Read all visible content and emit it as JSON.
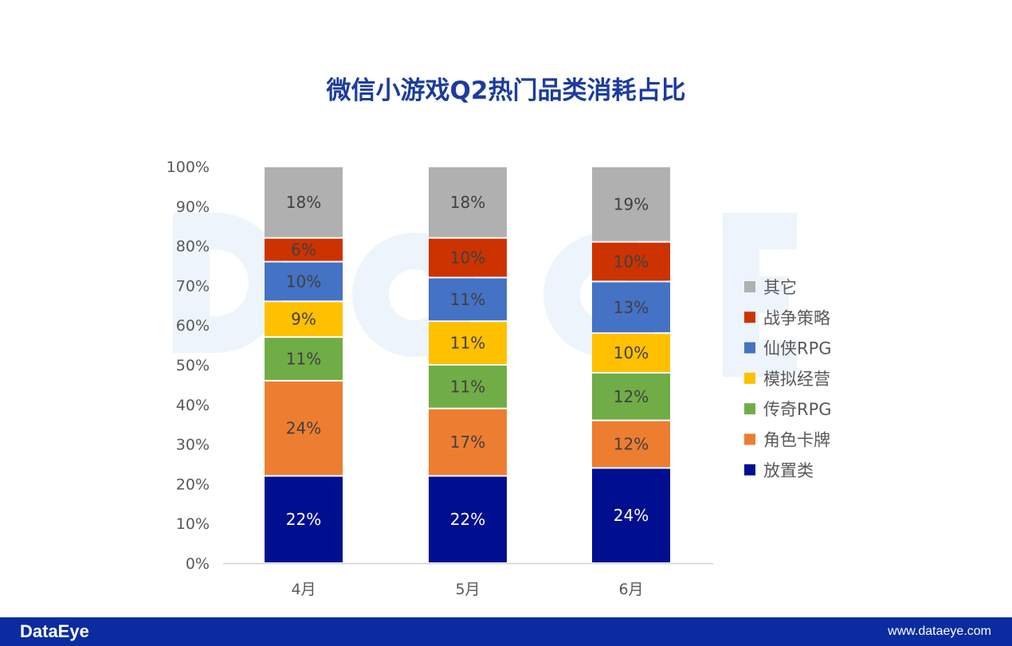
{
  "chart_data": {
    "type": "bar",
    "stacked": true,
    "title": "微信小游戏Q2热门品类消耗占比",
    "categories": [
      "4月",
      "5月",
      "6月"
    ],
    "ylim": [
      0,
      100
    ],
    "yticks": [
      "0%",
      "10%",
      "20%",
      "30%",
      "40%",
      "50%",
      "60%",
      "70%",
      "80%",
      "90%",
      "100%"
    ],
    "series": [
      {
        "name": "放置类",
        "color": "#000f8f",
        "label_color": "#ffffff",
        "values": [
          22,
          22,
          24
        ]
      },
      {
        "name": "角色卡牌",
        "color": "#ed7d31",
        "label_color": "#404040",
        "values": [
          24,
          17,
          12
        ]
      },
      {
        "name": "传奇RPG",
        "color": "#70ad47",
        "label_color": "#404040",
        "values": [
          11,
          11,
          12
        ]
      },
      {
        "name": "模拟经营",
        "color": "#ffc000",
        "label_color": "#404040",
        "values": [
          9,
          11,
          10
        ]
      },
      {
        "name": "仙侠RPG",
        "color": "#4472c4",
        "label_color": "#404040",
        "values": [
          10,
          11,
          13
        ]
      },
      {
        "name": "战争策略",
        "color": "#cc3300",
        "label_color": "#404040",
        "values": [
          6,
          10,
          10
        ]
      },
      {
        "name": "其它",
        "color": "#b0b0b0",
        "label_color": "#404040",
        "values": [
          18,
          18,
          19
        ]
      }
    ],
    "legend_position": "right"
  },
  "watermark": "DataEye",
  "footer": {
    "logo": "DataEye",
    "url": "www.dataeye.com"
  }
}
